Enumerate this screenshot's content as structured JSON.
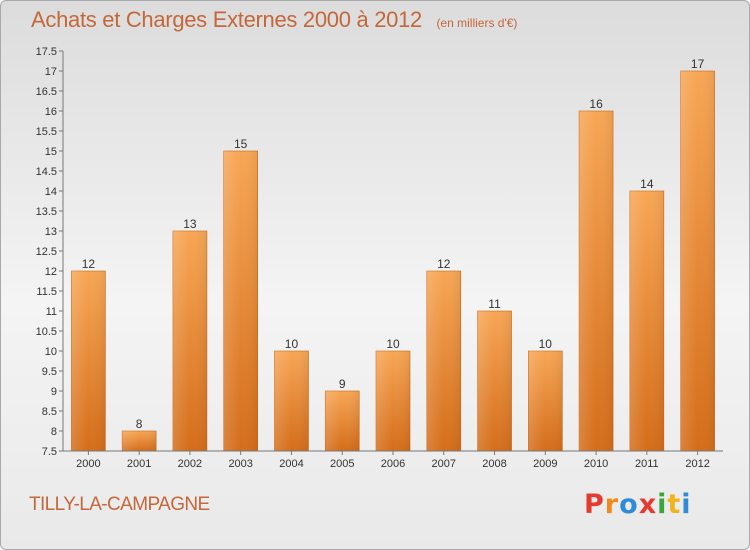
{
  "header": {
    "title": "Achats et Charges Externes 2000 à 2012",
    "subtitle": "(en milliers d'€)"
  },
  "footer": {
    "place": "TILLY-LA-CAMPAGNE",
    "logo_letters": [
      "P",
      "r",
      "o",
      "x",
      "i",
      "t",
      "i"
    ],
    "logo_colors": [
      "#e53a2f",
      "#f08a1c",
      "#2f8ad8",
      "#e53a2f",
      "#3aa63a",
      "#f0b41c",
      "#2f8ad8"
    ]
  },
  "chart_data": {
    "type": "bar",
    "title": "Achats et Charges Externes 2000 à 2012",
    "subtitle": "(en milliers d'€)",
    "categories": [
      "2000",
      "2001",
      "2002",
      "2003",
      "2004",
      "2005",
      "2006",
      "2007",
      "2008",
      "2009",
      "2010",
      "2011",
      "2012"
    ],
    "values": [
      12,
      8,
      13,
      15,
      10,
      9,
      10,
      12,
      11,
      10,
      16,
      14,
      17
    ],
    "ylim": [
      7.5,
      17.5
    ],
    "yticks": [
      "7.5",
      "8",
      "8.5",
      "9",
      "9.5",
      "10",
      "10.5",
      "11",
      "11.5",
      "12",
      "12.5",
      "13",
      "13.5",
      "14",
      "14.5",
      "15",
      "15.5",
      "16",
      "16.5",
      "17",
      "17.5"
    ],
    "grid": false,
    "bar_color": "#f39a45",
    "bar_color_dark": "#d9741f"
  }
}
